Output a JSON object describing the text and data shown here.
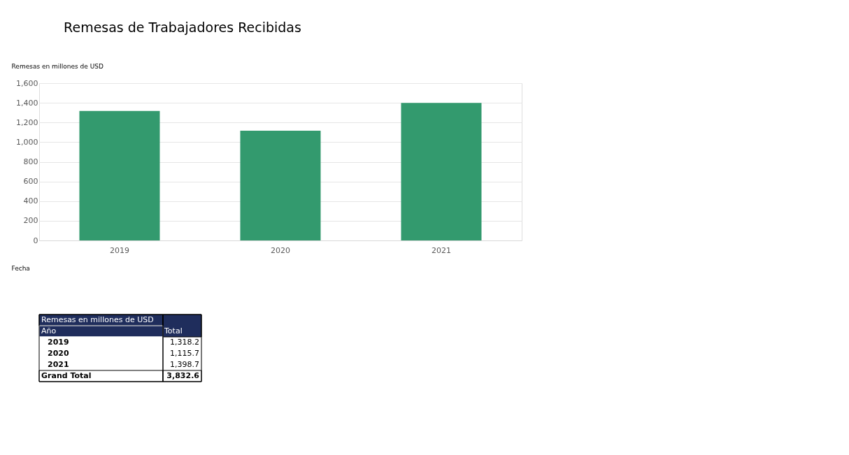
{
  "chart_data": {
    "type": "bar",
    "title": "Remesas de Trabajadores Recibidas",
    "ylabel": "Remesas en millones  de USD",
    "xlabel": "Fecha",
    "categories": [
      "2019",
      "2020",
      "2021"
    ],
    "values": [
      1318.2,
      1115.7,
      1398.7
    ],
    "color": "#339a6e",
    "ylim": [
      0,
      1600
    ],
    "yticks": [
      0,
      200,
      400,
      600,
      800,
      {
        "value": 1000,
        "label": "1,000"
      },
      {
        "value": 1200,
        "label": "1,200"
      },
      {
        "value": 1400,
        "label": "1,400"
      },
      {
        "value": 1600,
        "label": "1,600"
      }
    ],
    "grid": "y",
    "annotations": [
      "Remesas en millones de USD",
      "Año",
      "Total",
      "Grand Total",
      "3,832.6",
      "1,318.2",
      "1,115.7",
      "1,398.7"
    ]
  }
}
